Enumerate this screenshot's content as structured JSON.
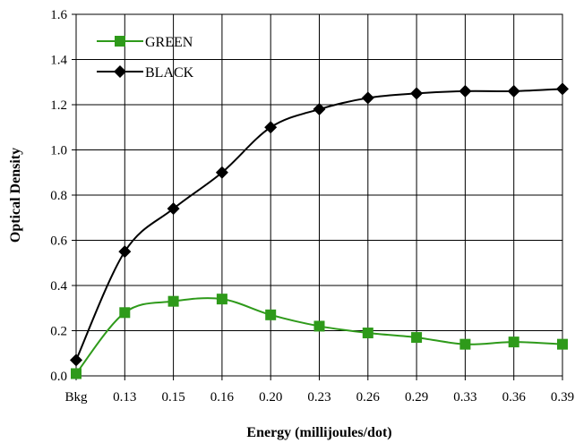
{
  "chart_data": {
    "type": "line",
    "title": "",
    "xlabel": "Energy (millijoules/dot)",
    "ylabel": "Optical Density",
    "categories": [
      "Bkg",
      "0.13",
      "0.15",
      "0.16",
      "0.20",
      "0.23",
      "0.26",
      "0.29",
      "0.33",
      "0.36",
      "0.39"
    ],
    "ylim": [
      0,
      1.6
    ],
    "yticks": [
      "0.0",
      "0.2",
      "0.4",
      "0.6",
      "0.8",
      "1.0",
      "1.2",
      "1.4",
      "1.6"
    ],
    "grid": true,
    "legend_position": "top-left",
    "series": [
      {
        "name": "GREEN",
        "color": "#2e9a1a",
        "marker": "square",
        "values": [
          0.01,
          0.28,
          0.33,
          0.34,
          0.27,
          0.22,
          0.19,
          0.17,
          0.14,
          0.15,
          0.14
        ]
      },
      {
        "name": "BLACK",
        "color": "#000000",
        "marker": "diamond",
        "values": [
          0.07,
          0.55,
          0.74,
          0.9,
          1.1,
          1.18,
          1.23,
          1.25,
          1.26,
          1.26,
          1.27
        ]
      }
    ]
  }
}
